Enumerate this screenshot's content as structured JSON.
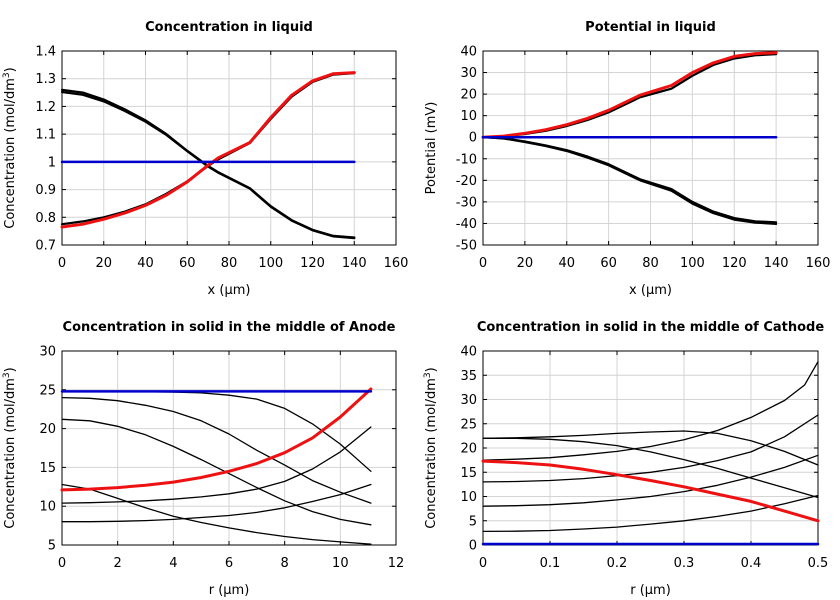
{
  "figure": {
    "colors": {
      "black": "#000000",
      "red": "#ee1111",
      "blue": "#0000cc"
    }
  },
  "chart_data": [
    {
      "id": "liquid-concentration",
      "type": "line",
      "title": "Concentration in liquid",
      "xlabel": "x (µm)",
      "ylabel_main": "Concentration (mol/dm",
      "ylabel_sup": "3",
      "ylabel_tail": ")",
      "xlim": [
        0,
        160
      ],
      "ylim": [
        0.7,
        1.4
      ],
      "xticks": [
        0,
        20,
        40,
        60,
        80,
        100,
        120,
        140,
        160
      ],
      "yticks": [
        0.7,
        0.8,
        0.9,
        1,
        1.1,
        1.2,
        1.3,
        1.4
      ],
      "ytick_labels": [
        "0.7",
        "0.8",
        "0.9",
        "1",
        "1.1",
        "1.2",
        "1.3",
        "1.4"
      ],
      "grid": true,
      "series": [
        {
          "name": "decreasing-1",
          "color": "black",
          "width": 2.2,
          "x": [
            0,
            10,
            20,
            30,
            40,
            50,
            60,
            70,
            75,
            90,
            100,
            110,
            120,
            130,
            140
          ],
          "y": [
            1.26,
            1.25,
            1.225,
            1.19,
            1.15,
            1.1,
            1.04,
            0.985,
            0.962,
            0.905,
            0.84,
            0.79,
            0.755,
            0.733,
            0.727
          ]
        },
        {
          "name": "decreasing-2",
          "color": "black",
          "width": 2.2,
          "x": [
            0,
            10,
            20,
            30,
            40,
            50,
            60,
            70,
            75,
            90,
            100,
            110,
            120,
            130,
            140
          ],
          "y": [
            1.252,
            1.242,
            1.218,
            1.184,
            1.145,
            1.097,
            1.038,
            0.983,
            0.96,
            0.903,
            0.838,
            0.788,
            0.753,
            0.731,
            0.725
          ]
        },
        {
          "name": "increasing-1",
          "color": "black",
          "width": 2.2,
          "x": [
            0,
            10,
            20,
            30,
            40,
            50,
            60,
            70,
            75,
            90,
            100,
            110,
            120,
            130,
            140
          ],
          "y": [
            0.775,
            0.785,
            0.8,
            0.82,
            0.847,
            0.885,
            0.93,
            0.985,
            1.01,
            1.068,
            1.155,
            1.235,
            1.288,
            1.315,
            1.32
          ]
        },
        {
          "name": "increasing-red",
          "color": "red",
          "width": 3,
          "x": [
            0,
            10,
            20,
            30,
            40,
            50,
            60,
            70,
            75,
            90,
            100,
            110,
            120,
            130,
            140
          ],
          "y": [
            0.765,
            0.775,
            0.793,
            0.815,
            0.843,
            0.88,
            0.928,
            0.988,
            1.015,
            1.07,
            1.16,
            1.24,
            1.292,
            1.318,
            1.322
          ]
        },
        {
          "name": "uniform-blue",
          "color": "blue",
          "width": 2.5,
          "x": [
            0,
            140
          ],
          "y": [
            1,
            1
          ]
        }
      ]
    },
    {
      "id": "liquid-potential",
      "type": "line",
      "title": "Potential in liquid",
      "xlabel": "x (µm)",
      "ylabel_main": "Potential (mV)",
      "ylabel_sup": "",
      "ylabel_tail": "",
      "xlim": [
        0,
        160
      ],
      "ylim": [
        -50,
        40
      ],
      "xticks": [
        0,
        20,
        40,
        60,
        80,
        100,
        120,
        140,
        160
      ],
      "yticks": [
        -50,
        -40,
        -30,
        -20,
        -10,
        0,
        10,
        20,
        30,
        40
      ],
      "ytick_labels": [
        "-50",
        "-40",
        "-30",
        "-20",
        "-10",
        "0",
        "10",
        "20",
        "30",
        "40"
      ],
      "grid": true,
      "series": [
        {
          "name": "positive-1",
          "color": "black",
          "width": 2.2,
          "x": [
            0,
            10,
            20,
            30,
            40,
            50,
            60,
            75,
            90,
            100,
            110,
            120,
            130,
            140
          ],
          "y": [
            0,
            0.4,
            1.5,
            3,
            5.2,
            8,
            11.5,
            18.5,
            22.5,
            28.5,
            33.5,
            36.5,
            38,
            38.5
          ]
        },
        {
          "name": "positive-red",
          "color": "red",
          "width": 3,
          "x": [
            0,
            10,
            20,
            30,
            40,
            50,
            60,
            75,
            90,
            100,
            110,
            120,
            130,
            140
          ],
          "y": [
            0,
            0.5,
            1.8,
            3.5,
            5.8,
            8.8,
            12.5,
            19.5,
            24,
            30,
            34.5,
            37.5,
            38.8,
            39.2
          ]
        },
        {
          "name": "negative-1",
          "color": "black",
          "width": 2.2,
          "x": [
            0,
            10,
            20,
            30,
            40,
            50,
            60,
            75,
            90,
            100,
            110,
            120,
            130,
            140
          ],
          "y": [
            0,
            -0.5,
            -2,
            -3.8,
            -6,
            -9,
            -12.5,
            -19.5,
            -24,
            -30,
            -34.5,
            -37.5,
            -39,
            -39.5
          ]
        },
        {
          "name": "negative-2",
          "color": "black",
          "width": 2.2,
          "x": [
            0,
            10,
            20,
            30,
            40,
            50,
            60,
            75,
            90,
            100,
            110,
            120,
            130,
            140
          ],
          "y": [
            0,
            -0.6,
            -2.2,
            -4.1,
            -6.4,
            -9.5,
            -13,
            -20,
            -24.8,
            -30.8,
            -35.2,
            -38.2,
            -39.6,
            -40.2
          ]
        },
        {
          "name": "zero-blue",
          "color": "blue",
          "width": 2.5,
          "x": [
            0,
            140
          ],
          "y": [
            0,
            0
          ]
        }
      ]
    },
    {
      "id": "anode-solid-concentration",
      "type": "line",
      "title": "Concentration in solid in the middle of Anode",
      "xlabel": "r (µm)",
      "ylabel_main": "Concentration (mol/dm",
      "ylabel_sup": "3",
      "ylabel_tail": ")",
      "xlim": [
        0,
        12
      ],
      "ylim": [
        5,
        30
      ],
      "xticks": [
        0,
        2,
        4,
        6,
        8,
        10,
        12
      ],
      "yticks": [
        5,
        10,
        15,
        20,
        25,
        30
      ],
      "ytick_labels": [
        "5",
        "10",
        "15",
        "20",
        "25",
        "30"
      ],
      "grid": true,
      "series": [
        {
          "name": "curve-a",
          "color": "black",
          "width": 1.3,
          "x": [
            0,
            1,
            2,
            3,
            4,
            5,
            6,
            7,
            8,
            9,
            10,
            11.1
          ],
          "y": [
            24.8,
            24.8,
            24.78,
            24.75,
            24.7,
            24.6,
            24.3,
            23.8,
            22.6,
            20.6,
            18,
            14.5
          ]
        },
        {
          "name": "curve-b",
          "color": "black",
          "width": 1.3,
          "x": [
            0,
            1,
            2,
            3,
            4,
            5,
            6,
            7,
            8,
            9,
            10,
            11.1
          ],
          "y": [
            24,
            23.9,
            23.6,
            23,
            22.2,
            21,
            19.3,
            17.2,
            15.3,
            13.3,
            11.8,
            10.4
          ]
        },
        {
          "name": "curve-c",
          "color": "black",
          "width": 1.3,
          "x": [
            0,
            1,
            2,
            3,
            4,
            5,
            6,
            7,
            8,
            9,
            10,
            11.1
          ],
          "y": [
            21.2,
            21,
            20.3,
            19.2,
            17.7,
            16,
            14.2,
            12.4,
            10.7,
            9.3,
            8.3,
            7.6
          ]
        },
        {
          "name": "curve-d",
          "color": "black",
          "width": 1.3,
          "x": [
            0,
            1,
            2,
            3,
            4,
            5,
            6,
            7,
            8,
            9,
            10,
            11.1
          ],
          "y": [
            12.8,
            12.2,
            11,
            9.8,
            8.7,
            7.9,
            7.2,
            6.6,
            6.1,
            5.7,
            5.4,
            5.1
          ]
        },
        {
          "name": "curve-e",
          "color": "black",
          "width": 1.3,
          "x": [
            0,
            1,
            2,
            3,
            4,
            5,
            6,
            7,
            8,
            9,
            10,
            11.1
          ],
          "y": [
            10.4,
            10.45,
            10.55,
            10.7,
            10.9,
            11.2,
            11.6,
            12.2,
            13.2,
            14.8,
            17,
            20.2
          ]
        },
        {
          "name": "curve-f",
          "color": "black",
          "width": 1.3,
          "x": [
            0,
            1,
            2,
            3,
            4,
            5,
            6,
            7,
            8,
            9,
            10,
            11.1
          ],
          "y": [
            8,
            8,
            8.05,
            8.15,
            8.3,
            8.55,
            8.8,
            9.2,
            9.8,
            10.6,
            11.5,
            12.8
          ]
        },
        {
          "name": "curve-red",
          "color": "red",
          "width": 3,
          "x": [
            0,
            1,
            2,
            3,
            4,
            5,
            6,
            7,
            8,
            9,
            10,
            11.1
          ],
          "y": [
            12.1,
            12.2,
            12.4,
            12.7,
            13.1,
            13.7,
            14.5,
            15.5,
            16.9,
            18.8,
            21.5,
            25.1
          ]
        },
        {
          "name": "curve-blue",
          "color": "blue",
          "width": 2.5,
          "x": [
            0,
            11.1
          ],
          "y": [
            24.8,
            24.8
          ]
        }
      ]
    },
    {
      "id": "cathode-solid-concentration",
      "type": "line",
      "title": "Concentration in solid in the middle of Cathode",
      "xlabel": "r (µm)",
      "ylabel_main": "Concentration (mol/dm",
      "ylabel_sup": "3",
      "ylabel_tail": ")",
      "xlim": [
        0,
        0.5
      ],
      "ylim": [
        0,
        40
      ],
      "xticks": [
        0,
        0.1,
        0.2,
        0.3,
        0.4,
        0.5
      ],
      "xtick_labels": [
        "0",
        "0.1",
        "0.2",
        "0.3",
        "0.4",
        "0.5"
      ],
      "yticks": [
        0,
        5,
        10,
        15,
        20,
        25,
        30,
        35,
        40
      ],
      "ytick_labels": [
        "0",
        "5",
        "10",
        "15",
        "20",
        "25",
        "30",
        "35",
        "40"
      ],
      "grid": true,
      "series": [
        {
          "name": "curve-a",
          "color": "black",
          "width": 1.3,
          "x": [
            0,
            0.05,
            0.1,
            0.15,
            0.2,
            0.25,
            0.3,
            0.35,
            0.4,
            0.45,
            0.48,
            0.5
          ],
          "y": [
            17.5,
            17.7,
            18,
            18.6,
            19.3,
            20.3,
            21.7,
            23.6,
            26.3,
            29.8,
            33,
            37.8
          ]
        },
        {
          "name": "curve-b",
          "color": "black",
          "width": 1.3,
          "x": [
            0,
            0.05,
            0.1,
            0.15,
            0.2,
            0.25,
            0.3,
            0.35,
            0.4,
            0.45,
            0.5
          ],
          "y": [
            13,
            13.1,
            13.3,
            13.7,
            14.3,
            15,
            16,
            17.4,
            19.2,
            22.3,
            26.8
          ]
        },
        {
          "name": "curve-c",
          "color": "black",
          "width": 1.3,
          "x": [
            0,
            0.05,
            0.1,
            0.15,
            0.2,
            0.25,
            0.3,
            0.35,
            0.4,
            0.45,
            0.5
          ],
          "y": [
            8,
            8.1,
            8.3,
            8.7,
            9.3,
            10,
            11,
            12.3,
            14,
            16,
            18.5
          ]
        },
        {
          "name": "curve-d",
          "color": "black",
          "width": 1.3,
          "x": [
            0,
            0.05,
            0.1,
            0.15,
            0.2,
            0.25,
            0.3,
            0.35,
            0.4,
            0.45,
            0.5
          ],
          "y": [
            2.8,
            2.85,
            3,
            3.3,
            3.7,
            4.3,
            5,
            5.9,
            7,
            8.5,
            10.2
          ]
        },
        {
          "name": "curve-e",
          "color": "black",
          "width": 1.3,
          "x": [
            0,
            0.05,
            0.1,
            0.15,
            0.2,
            0.25,
            0.3,
            0.35,
            0.4,
            0.45,
            0.5
          ],
          "y": [
            22,
            22.1,
            22.3,
            22.6,
            23,
            23.3,
            23.5,
            23,
            21.5,
            19.3,
            16.5
          ]
        },
        {
          "name": "curve-f",
          "color": "black",
          "width": 1.3,
          "x": [
            0,
            0.05,
            0.1,
            0.15,
            0.2,
            0.25,
            0.3,
            0.35,
            0.4,
            0.45,
            0.5
          ],
          "y": [
            22,
            22,
            21.8,
            21.3,
            20.5,
            19.2,
            17.6,
            15.8,
            13.8,
            11.8,
            9.8
          ]
        },
        {
          "name": "curve-red",
          "color": "red",
          "width": 3,
          "x": [
            0,
            0.05,
            0.1,
            0.15,
            0.2,
            0.25,
            0.3,
            0.35,
            0.4,
            0.45,
            0.5
          ],
          "y": [
            17.3,
            17,
            16.5,
            15.6,
            14.5,
            13.3,
            12,
            10.5,
            9,
            7,
            5
          ]
        },
        {
          "name": "curve-blue",
          "color": "blue",
          "width": 2.5,
          "x": [
            0,
            0.5
          ],
          "y": [
            0.2,
            0.2
          ]
        }
      ]
    }
  ]
}
